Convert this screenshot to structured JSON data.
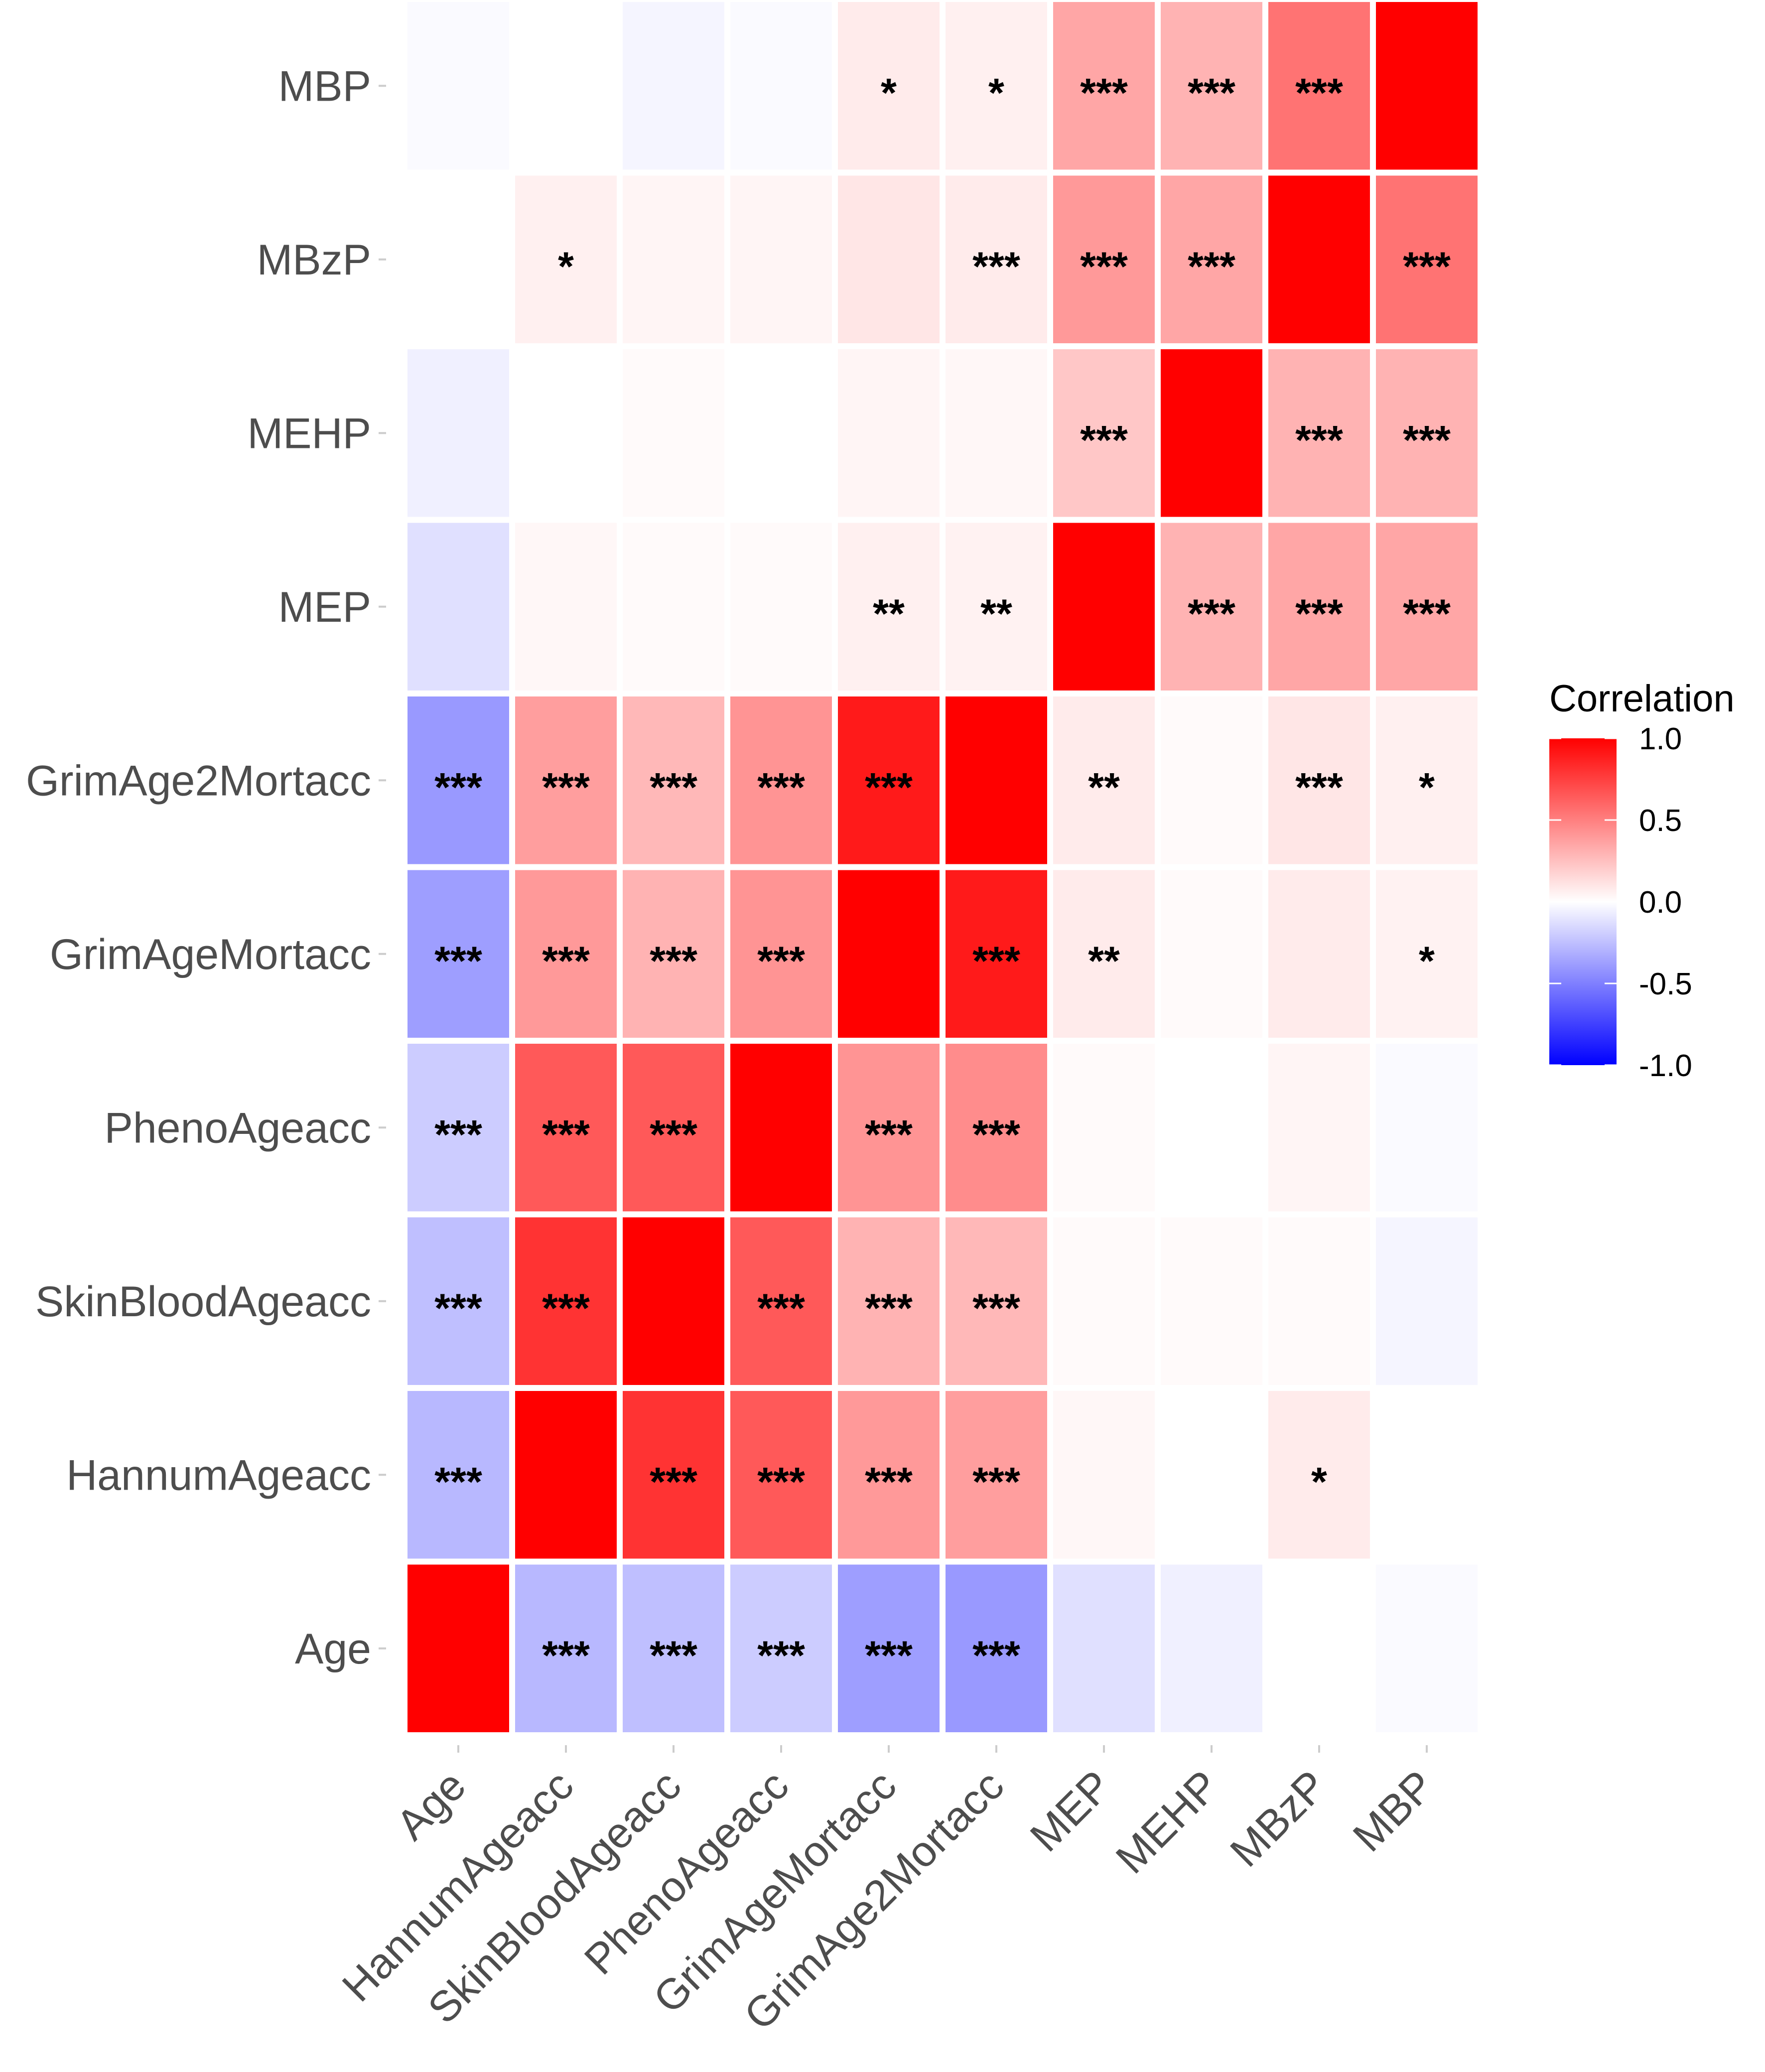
{
  "chart_data": {
    "type": "heatmap",
    "title": "",
    "xlabel": "",
    "ylabel": "",
    "x_categories": [
      "Age",
      "HannumAgeacc",
      "SkinBloodAgeacc",
      "PhenoAgeacc",
      "GrimAgeMortacc",
      "GrimAge2Mortacc",
      "MEP",
      "MEHP",
      "MBzP",
      "MBP"
    ],
    "y_categories": [
      "Age",
      "HannumAgeacc",
      "SkinBloodAgeacc",
      "PhenoAgeacc",
      "GrimAgeMortacc",
      "GrimAge2Mortacc",
      "MEP",
      "MEHP",
      "MBzP",
      "MBP"
    ],
    "values": [
      [
        1.0,
        -0.28,
        -0.25,
        -0.2,
        -0.38,
        -0.4,
        -0.12,
        -0.06,
        0.0,
        -0.02
      ],
      [
        -0.28,
        1.0,
        0.8,
        0.65,
        0.4,
        0.38,
        0.03,
        0.0,
        0.08,
        0.0
      ],
      [
        -0.25,
        0.8,
        1.0,
        0.65,
        0.3,
        0.28,
        0.02,
        0.02,
        0.02,
        -0.04
      ],
      [
        -0.2,
        0.65,
        0.65,
        1.0,
        0.42,
        0.45,
        0.02,
        0.0,
        0.04,
        -0.02
      ],
      [
        -0.38,
        0.4,
        0.3,
        0.42,
        1.0,
        0.9,
        0.08,
        0.02,
        0.08,
        0.05
      ],
      [
        -0.4,
        0.38,
        0.28,
        0.42,
        0.9,
        1.0,
        0.08,
        0.02,
        0.1,
        0.06
      ],
      [
        -0.12,
        0.03,
        0.02,
        0.02,
        0.06,
        0.05,
        1.0,
        0.3,
        0.35,
        0.35
      ],
      [
        -0.06,
        0.0,
        0.02,
        0.0,
        0.04,
        0.03,
        0.22,
        1.0,
        0.3,
        0.3
      ],
      [
        0.0,
        0.06,
        0.04,
        0.04,
        0.1,
        0.08,
        0.4,
        0.35,
        1.0,
        0.55
      ],
      [
        -0.02,
        0.0,
        -0.04,
        -0.02,
        0.08,
        0.06,
        0.35,
        0.3,
        0.55,
        1.0
      ]
    ],
    "significance": [
      [
        "",
        "***",
        "***",
        "***",
        "***",
        "***",
        "",
        "",
        "",
        ""
      ],
      [
        "***",
        "",
        "***",
        "***",
        "***",
        "***",
        "",
        "",
        "*",
        ""
      ],
      [
        "***",
        "***",
        "",
        "***",
        "***",
        "***",
        "",
        "",
        "",
        ""
      ],
      [
        "***",
        "***",
        "***",
        "",
        "***",
        "***",
        "",
        "",
        "",
        ""
      ],
      [
        "***",
        "***",
        "***",
        "***",
        "",
        "***",
        "**",
        "",
        "",
        "*"
      ],
      [
        "***",
        "***",
        "***",
        "***",
        "***",
        "",
        "**",
        "",
        "***",
        "*"
      ],
      [
        "",
        "",
        "",
        "",
        "**",
        "**",
        "",
        "***",
        "***",
        "***"
      ],
      [
        "",
        "",
        "",
        "",
        "",
        "",
        "***",
        "",
        "***",
        "***"
      ],
      [
        "",
        "*",
        "",
        "",
        "",
        "***",
        "***",
        "***",
        "",
        "***"
      ],
      [
        "",
        "",
        "",
        "",
        "*",
        "*",
        "***",
        "***",
        "***",
        ""
      ]
    ],
    "legend": {
      "title": "Correlation",
      "ticks": [
        1.0,
        0.5,
        0.0,
        -0.5,
        -1.0
      ],
      "tick_labels": [
        "1.0",
        "0.5",
        "0.0",
        "-0.5",
        "-1.0"
      ],
      "range": [
        -1.0,
        1.0
      ],
      "colors": {
        "low": "#0000ff",
        "mid": "#ffffff",
        "high": "#ff0000"
      },
      "position": "right"
    }
  }
}
